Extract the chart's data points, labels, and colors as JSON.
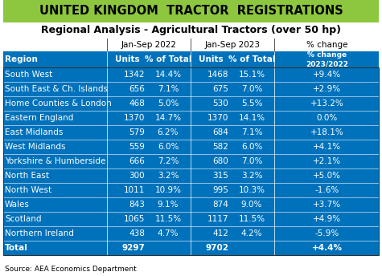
{
  "title": "UNITED KINGDOM  TRACTOR  REGISTRATIONS",
  "subtitle": "Regional Analysis - Agricultural Tractors (over 50 hp)",
  "source": "Source: AEA Economics Department",
  "header_bg": "#8dc63f",
  "col_header_bg": "#0072bc",
  "regions": [
    "South West",
    "South East & Ch. Islands",
    "Home Counties & London",
    "Eastern England",
    "East Midlands",
    "West Midlands",
    "Yorkshire & Humberside",
    "North East",
    "North West",
    "Wales",
    "Scotland",
    "Northern Ireland",
    "Total"
  ],
  "units_2022": [
    1342,
    656,
    468,
    1370,
    579,
    559,
    666,
    300,
    1011,
    843,
    1065,
    438,
    9297
  ],
  "pct_2022": [
    "14.4%",
    "7.1%",
    "5.0%",
    "14.7%",
    "6.2%",
    "6.0%",
    "7.2%",
    "3.2%",
    "10.9%",
    "9.1%",
    "11.5%",
    "4.7%",
    ""
  ],
  "units_2023": [
    1468,
    675,
    530,
    1370,
    684,
    582,
    680,
    315,
    995,
    874,
    1117,
    412,
    9702
  ],
  "pct_2023": [
    "15.1%",
    "7.0%",
    "5.5%",
    "14.1%",
    "7.1%",
    "6.0%",
    "7.0%",
    "3.2%",
    "10.3%",
    "9.0%",
    "11.5%",
    "4.2%",
    ""
  ],
  "pct_change": [
    "+9.4%",
    "+2.9%",
    "+13.2%",
    "0.0%",
    "+18.1%",
    "+4.1%",
    "+2.1%",
    "+5.0%",
    "-1.6%",
    "+3.7%",
    "+4.9%",
    "-5.9%",
    "+4.4%"
  ]
}
